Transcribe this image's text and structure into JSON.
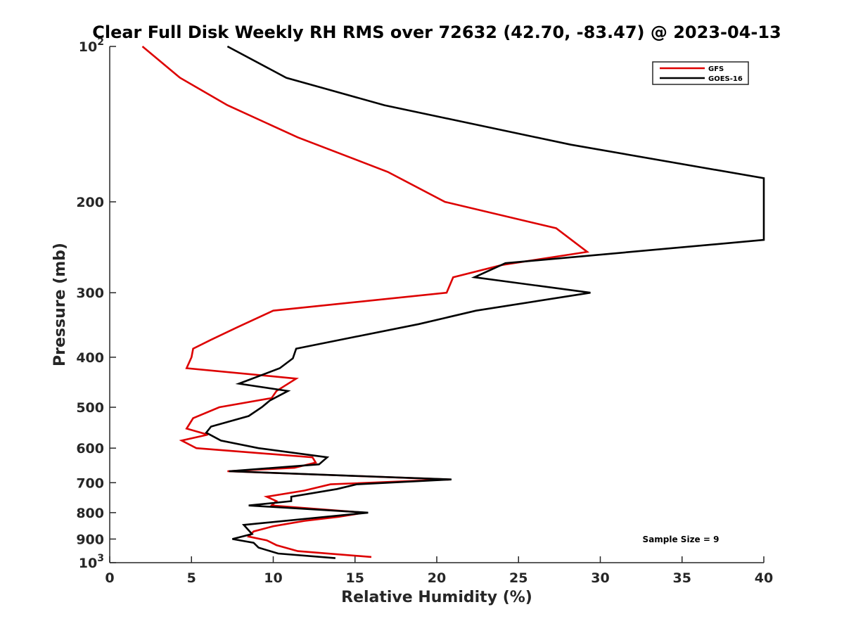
{
  "chart_data": {
    "type": "line",
    "title": "Clear Full Disk Weekly RH RMS over 72632 (42.70, -83.47) @ 2023-04-13",
    "xlabel": "Relative Humidity (%)",
    "ylabel": "Pressure (mb)",
    "xlim": [
      0,
      40
    ],
    "ylim": [
      100,
      1000
    ],
    "y_scale": "log",
    "y_reversed": true,
    "x_ticks": [
      0,
      5,
      10,
      15,
      20,
      25,
      30,
      35,
      40
    ],
    "x_tick_labels": [
      "0",
      "5",
      "10",
      "15",
      "20",
      "25",
      "30",
      "35",
      "40"
    ],
    "y_ticks": [
      100,
      200,
      300,
      400,
      500,
      600,
      700,
      800,
      900,
      1000
    ],
    "y_tick_labels": [
      {
        "base": "10",
        "exp": "2"
      },
      {
        "base": "200",
        "exp": ""
      },
      {
        "base": "300",
        "exp": ""
      },
      {
        "base": "400",
        "exp": ""
      },
      {
        "base": "500",
        "exp": ""
      },
      {
        "base": "600",
        "exp": ""
      },
      {
        "base": "700",
        "exp": ""
      },
      {
        "base": "800",
        "exp": ""
      },
      {
        "base": "900",
        "exp": ""
      },
      {
        "base": "10",
        "exp": "3"
      }
    ],
    "grid": false,
    "legend_position": "top-right",
    "annotation": "Sample Size = 9",
    "series": [
      {
        "name": "GFS",
        "color": "#dd0000",
        "points": [
          {
            "x": 2.0,
            "y": 100
          },
          {
            "x": 4.3,
            "y": 115
          },
          {
            "x": 7.2,
            "y": 130
          },
          {
            "x": 11.5,
            "y": 150
          },
          {
            "x": 17.0,
            "y": 175
          },
          {
            "x": 20.5,
            "y": 200
          },
          {
            "x": 27.3,
            "y": 225
          },
          {
            "x": 29.2,
            "y": 250
          },
          {
            "x": 24.0,
            "y": 265
          },
          {
            "x": 21.0,
            "y": 280
          },
          {
            "x": 20.6,
            "y": 300
          },
          {
            "x": 10.0,
            "y": 325
          },
          {
            "x": 7.8,
            "y": 350
          },
          {
            "x": 6.2,
            "y": 370
          },
          {
            "x": 5.1,
            "y": 385
          },
          {
            "x": 5.0,
            "y": 400
          },
          {
            "x": 4.7,
            "y": 420
          },
          {
            "x": 11.4,
            "y": 440
          },
          {
            "x": 10.2,
            "y": 465
          },
          {
            "x": 9.9,
            "y": 480
          },
          {
            "x": 6.7,
            "y": 500
          },
          {
            "x": 5.1,
            "y": 525
          },
          {
            "x": 4.7,
            "y": 550
          },
          {
            "x": 6.0,
            "y": 565
          },
          {
            "x": 4.4,
            "y": 580
          },
          {
            "x": 5.3,
            "y": 600
          },
          {
            "x": 12.4,
            "y": 625
          },
          {
            "x": 12.6,
            "y": 640
          },
          {
            "x": 11.3,
            "y": 655
          },
          {
            "x": 7.2,
            "y": 665
          },
          {
            "x": 20.8,
            "y": 690
          },
          {
            "x": 13.5,
            "y": 705
          },
          {
            "x": 11.9,
            "y": 725
          },
          {
            "x": 9.6,
            "y": 745
          },
          {
            "x": 10.2,
            "y": 760
          },
          {
            "x": 9.9,
            "y": 775
          },
          {
            "x": 15.6,
            "y": 800
          },
          {
            "x": 14.0,
            "y": 815
          },
          {
            "x": 11.9,
            "y": 830
          },
          {
            "x": 10.0,
            "y": 850
          },
          {
            "x": 8.8,
            "y": 870
          },
          {
            "x": 8.5,
            "y": 890
          },
          {
            "x": 9.6,
            "y": 905
          },
          {
            "x": 10.2,
            "y": 925
          },
          {
            "x": 11.5,
            "y": 950
          },
          {
            "x": 16.0,
            "y": 975
          }
        ]
      },
      {
        "name": "GOES-16",
        "color": "#000000",
        "points": [
          {
            "x": 7.2,
            "y": 100
          },
          {
            "x": 10.8,
            "y": 115
          },
          {
            "x": 16.8,
            "y": 130
          },
          {
            "x": 28.2,
            "y": 155
          },
          {
            "x": 40.0,
            "y": 180
          },
          {
            "x": 40.0,
            "y": 237
          },
          {
            "x": 24.2,
            "y": 263
          },
          {
            "x": 22.3,
            "y": 280
          },
          {
            "x": 29.4,
            "y": 300
          },
          {
            "x": 22.4,
            "y": 325
          },
          {
            "x": 18.9,
            "y": 345
          },
          {
            "x": 11.4,
            "y": 385
          },
          {
            "x": 11.2,
            "y": 402
          },
          {
            "x": 10.4,
            "y": 420
          },
          {
            "x": 7.9,
            "y": 450
          },
          {
            "x": 10.9,
            "y": 465
          },
          {
            "x": 9.8,
            "y": 485
          },
          {
            "x": 9.3,
            "y": 500
          },
          {
            "x": 8.5,
            "y": 520
          },
          {
            "x": 6.2,
            "y": 545
          },
          {
            "x": 5.9,
            "y": 560
          },
          {
            "x": 6.8,
            "y": 580
          },
          {
            "x": 9.1,
            "y": 600
          },
          {
            "x": 13.3,
            "y": 625
          },
          {
            "x": 12.8,
            "y": 645
          },
          {
            "x": 7.3,
            "y": 665
          },
          {
            "x": 20.9,
            "y": 690
          },
          {
            "x": 15.1,
            "y": 705
          },
          {
            "x": 13.9,
            "y": 720
          },
          {
            "x": 11.1,
            "y": 745
          },
          {
            "x": 11.1,
            "y": 760
          },
          {
            "x": 8.5,
            "y": 775
          },
          {
            "x": 15.8,
            "y": 800
          },
          {
            "x": 8.2,
            "y": 845
          },
          {
            "x": 8.7,
            "y": 880
          },
          {
            "x": 7.5,
            "y": 900
          },
          {
            "x": 8.8,
            "y": 915
          },
          {
            "x": 9.1,
            "y": 935
          },
          {
            "x": 10.3,
            "y": 960
          },
          {
            "x": 13.8,
            "y": 980
          }
        ]
      }
    ]
  }
}
